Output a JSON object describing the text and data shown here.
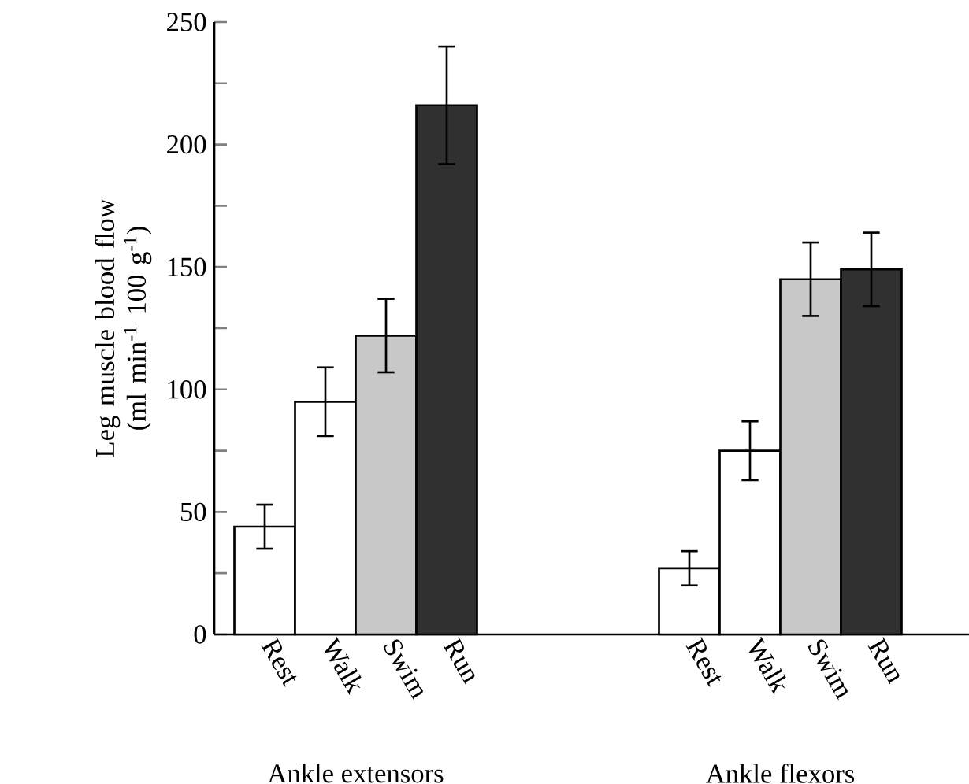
{
  "chart_data": {
    "type": "bar",
    "ylabel": "Leg muscle blood flow (ml min$^{-1}$ 100 g$^{-1}$)",
    "categories": [
      "Rest",
      "Walk",
      "Swim",
      "Run",
      null,
      null,
      null,
      "Rest",
      "Walk",
      "Swim",
      "Run"
    ],
    "values": [
      44,
      95,
      122,
      216,
      null,
      null,
      null,
      27,
      75,
      145,
      149
    ],
    "errors": [
      9,
      14,
      15,
      24,
      null,
      null,
      null,
      7,
      12,
      15,
      15
    ],
    "colors": [
      "#ffffff",
      "#ffffff",
      "#c8c8c8",
      "#303030",
      null,
      null,
      null,
      "#ffffff",
      "#ffffff",
      "#c8c8c8",
      "#303030"
    ],
    "annotations": [
      "Ankle extensors",
      "Ankle flexors"
    ],
    "ylim": [
      0,
      250
    ],
    "yticks": [
      0,
      {
        "value": 25,
        "label": null
      },
      50,
      {
        "value": 75,
        "label": null
      },
      100,
      {
        "value": 125,
        "label": null
      },
      150,
      {
        "value": 175,
        "label": null
      },
      200,
      {
        "value": 225,
        "label": null
      },
      250
    ],
    "grid": false
  }
}
